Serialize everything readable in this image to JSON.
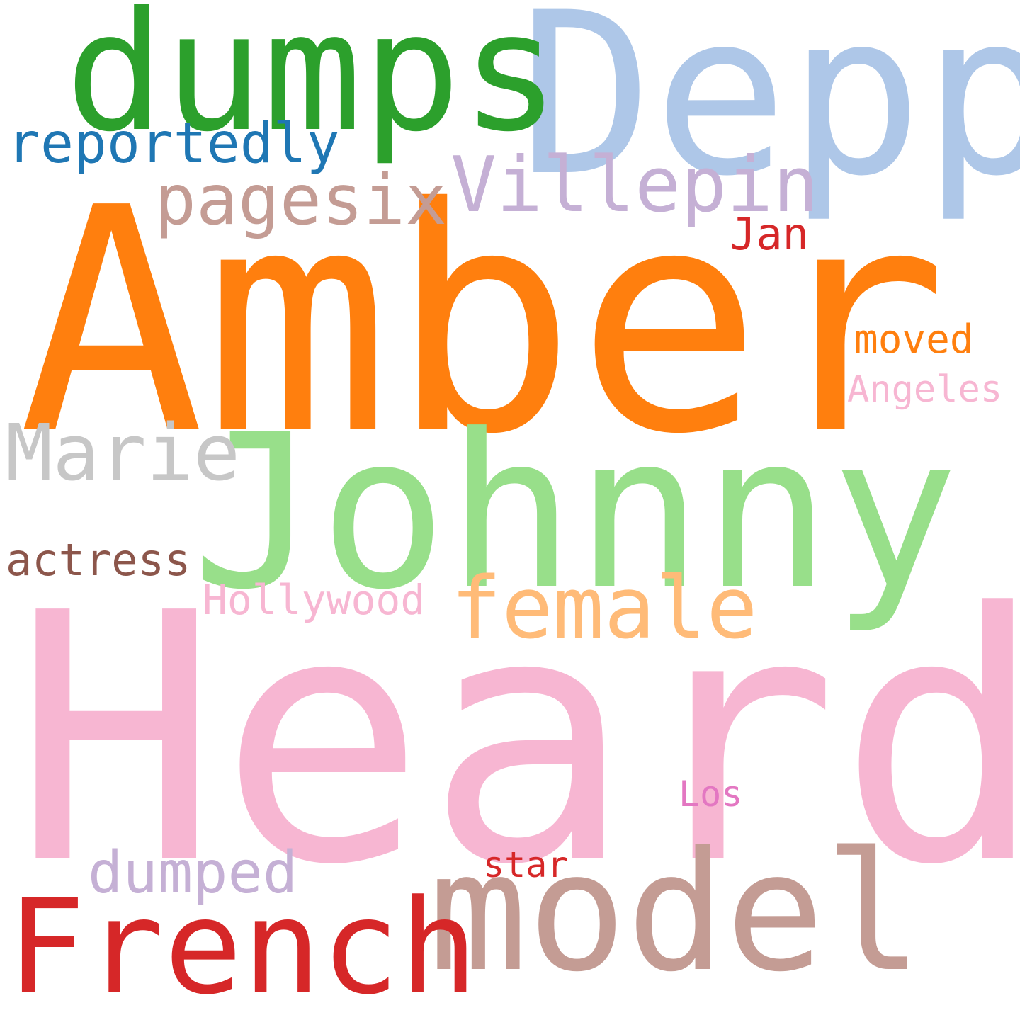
{
  "word_cloud": {
    "words": [
      {
        "text": "Heard",
        "color": "#f7b6d2"
      },
      {
        "text": "Amber",
        "color": "#ff7f0e"
      },
      {
        "text": "Johnny",
        "color": "#98df8a"
      },
      {
        "text": "Depp",
        "color": "#aec7e8"
      },
      {
        "text": "dumps",
        "color": "#2ca02c"
      },
      {
        "text": "model",
        "color": "#c49c94"
      },
      {
        "text": "French",
        "color": "#d62728"
      },
      {
        "text": "female",
        "color": "#ffbb78"
      },
      {
        "text": "Marie",
        "color": "#c7c7c7"
      },
      {
        "text": "Villepin",
        "color": "#c5b0d5"
      },
      {
        "text": "pagesix",
        "color": "#c49c94"
      },
      {
        "text": "reportedly",
        "color": "#1f77b4"
      },
      {
        "text": "dumped",
        "color": "#c5b0d5"
      },
      {
        "text": "actress",
        "color": "#8c564b"
      },
      {
        "text": "Hollywood",
        "color": "#f7b6d2"
      },
      {
        "text": "Angeles",
        "color": "#f7b6d2"
      },
      {
        "text": "moved",
        "color": "#ff7f0e"
      },
      {
        "text": "Jan",
        "color": "#d62728"
      },
      {
        "text": "star",
        "color": "#d62728"
      },
      {
        "text": "Los",
        "color": "#e377c2"
      }
    ]
  }
}
